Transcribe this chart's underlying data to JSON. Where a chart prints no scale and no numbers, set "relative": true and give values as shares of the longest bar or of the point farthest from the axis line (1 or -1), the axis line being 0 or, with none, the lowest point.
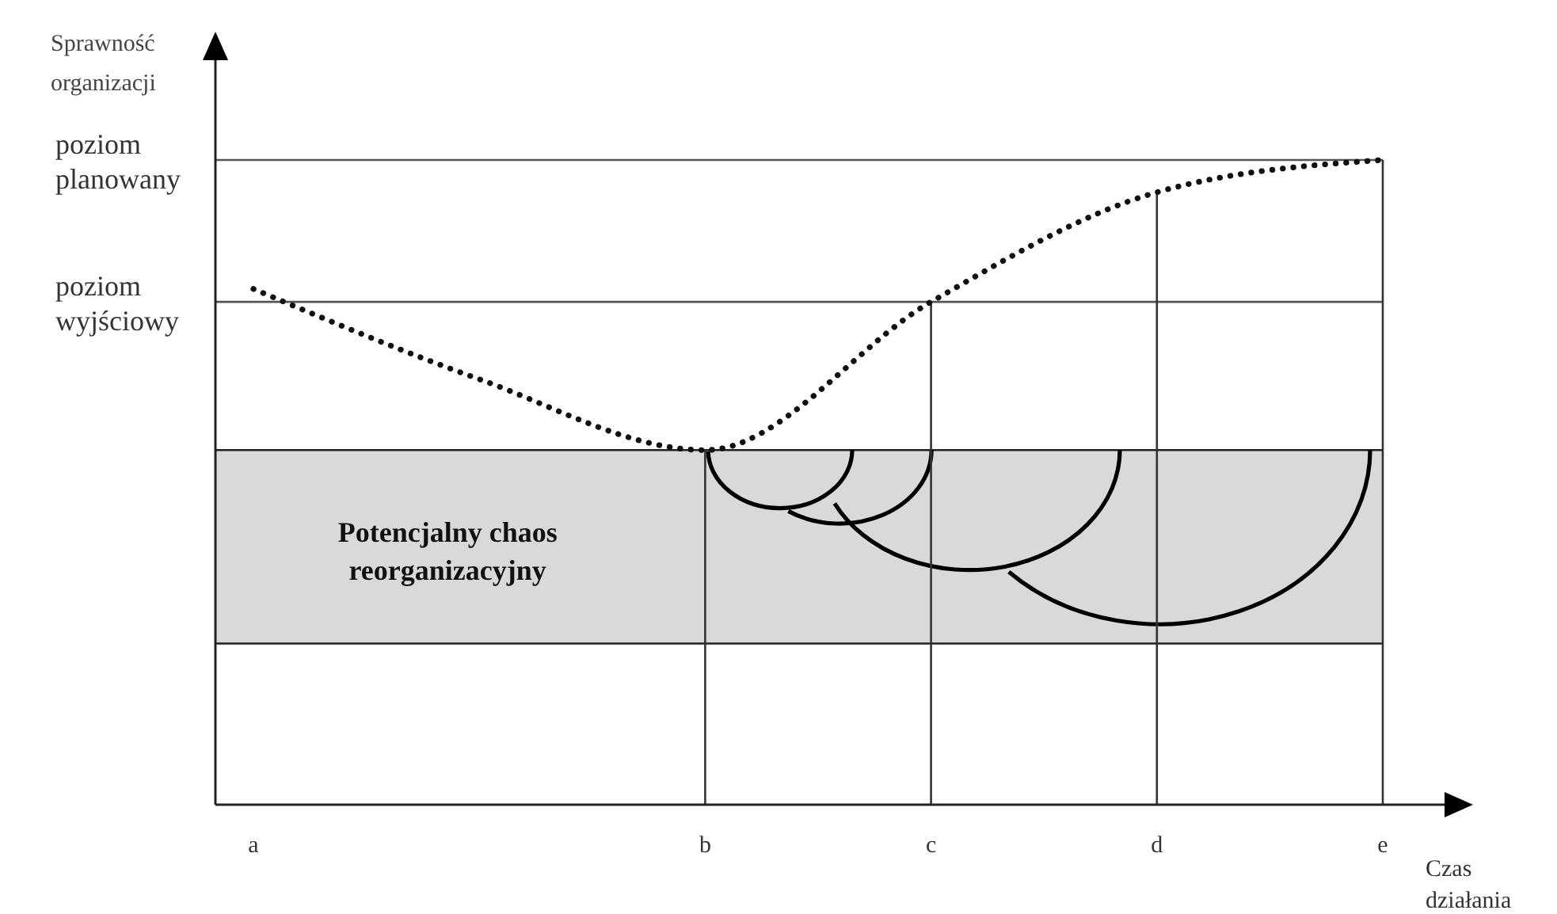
{
  "chart_data": {
    "type": "line",
    "relative": true,
    "xlabel": "Czas działania",
    "ylabel": "Sprawność organizacji",
    "categories": [
      "a",
      null,
      "b",
      "c",
      "d",
      "e"
    ],
    "series": [
      {
        "color": "#111111",
        "values": [
          0.8,
          0.66,
          0.55,
          0.78,
          0.95,
          1.0
        ]
      }
    ],
    "line_style": "dotted",
    "marker": "none",
    "ref_lines": [
      {
        "axis": "y",
        "value": 1.0,
        "label": "poziom planowany",
        "color": "#555555"
      },
      {
        "axis": "y",
        "value": 0.78,
        "label": "poziom wyjściowy",
        "color": "#555555"
      },
      {
        "axis": "x",
        "value": "b",
        "color": "#333333"
      },
      {
        "axis": "x",
        "value": "c",
        "color": "#333333"
      },
      {
        "axis": "x",
        "value": "d",
        "color": "#333333"
      }
    ],
    "bands": [
      {
        "axis": "y",
        "from": 0.25,
        "to": 0.55,
        "label": "Potencjalny chaos reorganizacyjny",
        "color": "#d9d9d9"
      }
    ]
  }
}
